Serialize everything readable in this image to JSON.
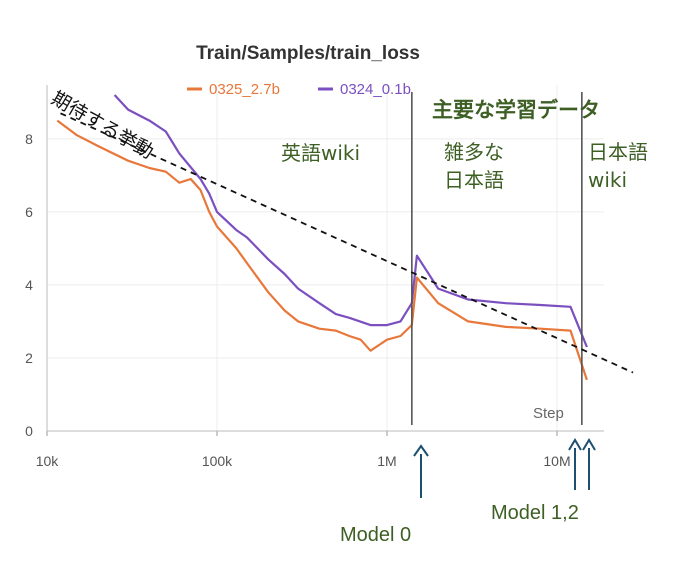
{
  "chart_data": {
    "type": "line",
    "title": "Train/Samples/train_loss",
    "xscale": "log",
    "xlim": [
      10000,
      25000000
    ],
    "ylim": [
      0,
      9.2
    ],
    "x_ticks": [
      {
        "value": 10000,
        "label": "10k"
      },
      {
        "value": 100000,
        "label": "100k"
      },
      {
        "value": 1000000,
        "label": "1M"
      },
      {
        "value": 10000000,
        "label": "10M"
      }
    ],
    "y_ticks": [
      0,
      2,
      4,
      6,
      8
    ],
    "x_axis_label": "Step",
    "legend_position": "top",
    "series": [
      {
        "name": "0325_2.7b",
        "color": "#e8773a",
        "x": [
          11500,
          15000,
          20000,
          30000,
          40000,
          50000,
          60000,
          70000,
          80000,
          90000,
          100000,
          130000,
          150000,
          200000,
          250000,
          300000,
          400000,
          500000,
          600000,
          700000,
          800000,
          1000000,
          1200000,
          1400000,
          1500000,
          2000000,
          3000000,
          5000000,
          8000000,
          12000000,
          15000000
        ],
        "values": [
          8.5,
          8.1,
          7.8,
          7.4,
          7.2,
          7.1,
          6.8,
          6.9,
          6.6,
          6.0,
          5.6,
          5.0,
          4.6,
          3.8,
          3.3,
          3.0,
          2.8,
          2.75,
          2.6,
          2.5,
          2.2,
          2.5,
          2.6,
          2.9,
          4.2,
          3.5,
          3.0,
          2.85,
          2.8,
          2.75,
          1.4
        ]
      },
      {
        "name": "0324_0.1b",
        "color": "#7b4fc0",
        "x": [
          25000,
          30000,
          40000,
          50000,
          60000,
          80000,
          90000,
          100000,
          130000,
          150000,
          200000,
          250000,
          300000,
          400000,
          500000,
          600000,
          800000,
          1000000,
          1200000,
          1400000,
          1500000,
          2000000,
          3000000,
          5000000,
          8000000,
          12000000,
          15000000
        ],
        "values": [
          9.2,
          8.8,
          8.5,
          8.2,
          7.6,
          6.9,
          6.5,
          6.0,
          5.5,
          5.3,
          4.7,
          4.3,
          3.9,
          3.5,
          3.2,
          3.1,
          2.9,
          2.9,
          3.0,
          3.5,
          4.8,
          3.9,
          3.6,
          3.5,
          3.45,
          3.4,
          2.3
        ]
      }
    ],
    "expected_trend": {
      "label": "期待する挙動",
      "x": [
        12000,
        28000000
      ],
      "values": [
        8.7,
        1.6
      ]
    },
    "phase_boundaries": [
      1400000,
      14000000
    ],
    "phase_title": "主要な学習データ",
    "phases": [
      {
        "lines": [
          "英語wiki"
        ]
      },
      {
        "lines": [
          "雑多な",
          "日本語"
        ]
      },
      {
        "lines": [
          "日本語",
          "wiki"
        ]
      }
    ],
    "models": [
      {
        "label": "Model 0"
      },
      {
        "label": "Model 1,2"
      }
    ]
  }
}
